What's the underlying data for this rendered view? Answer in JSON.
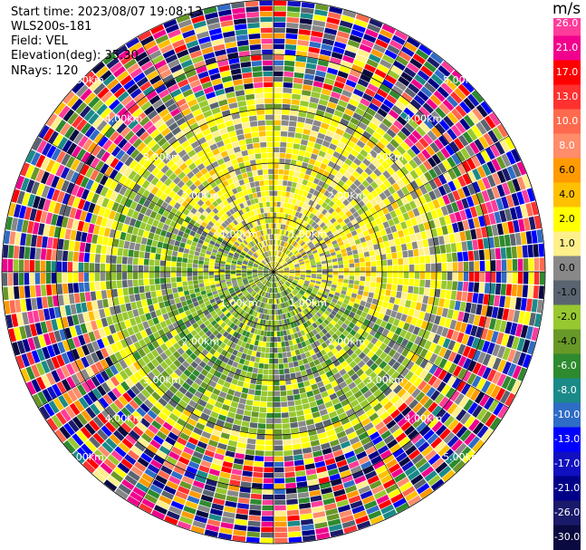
{
  "header": {
    "start_time": "Start time: 2023/08/07 19:08:13",
    "instrument": "WLS200s-181",
    "field": "Field: VEL",
    "elevation": "Elevation(deg): 35.30",
    "nrays": "NRays: 120"
  },
  "colorbar": {
    "unit": "m/s",
    "ticks": [
      "26.0",
      "21.0",
      "17.0",
      "13.0",
      "10.0",
      "8.0",
      "6.0",
      "4.0",
      "2.0",
      "1.0",
      "0.0",
      "-1.0",
      "-2.0",
      "-4.0",
      "-6.0",
      "-8.0",
      "-10.0",
      "-13.0",
      "-17.0",
      "-21.0",
      "-26.0",
      "-30.0"
    ],
    "colors": [
      "#ff3c9a",
      "#f0008c",
      "#ff0000",
      "#ff3030",
      "#ff6a4e",
      "#ff8c6a",
      "#ff9a00",
      "#ffc000",
      "#ffff00",
      "#fff08c",
      "#888888",
      "#5a6470",
      "#98c830",
      "#689828",
      "#2e8a2e",
      "#1a8a88",
      "#2f6cc6",
      "#0000ff",
      "#1010c0",
      "#000088",
      "#1a1a6a",
      "#0a0a40"
    ]
  },
  "range_labels": [
    "5.00km",
    "4.00km",
    "3.00km",
    "2.00km",
    "1.00km"
  ],
  "chart_data": {
    "type": "heatmap",
    "field": "VEL",
    "unit": "m/s",
    "elevation_deg": 35.3,
    "n_rays": 120,
    "range_rings_km": [
      1,
      2,
      3,
      4,
      5
    ],
    "color_scale_ticks": [
      26.0,
      21.0,
      17.0,
      13.0,
      10.0,
      8.0,
      6.0,
      4.0,
      2.0,
      1.0,
      0.0,
      -1.0,
      -2.0,
      -4.0,
      -6.0,
      -8.0,
      -10.0,
      -13.0,
      -17.0,
      -21.0,
      -26.0,
      -30.0
    ]
  }
}
